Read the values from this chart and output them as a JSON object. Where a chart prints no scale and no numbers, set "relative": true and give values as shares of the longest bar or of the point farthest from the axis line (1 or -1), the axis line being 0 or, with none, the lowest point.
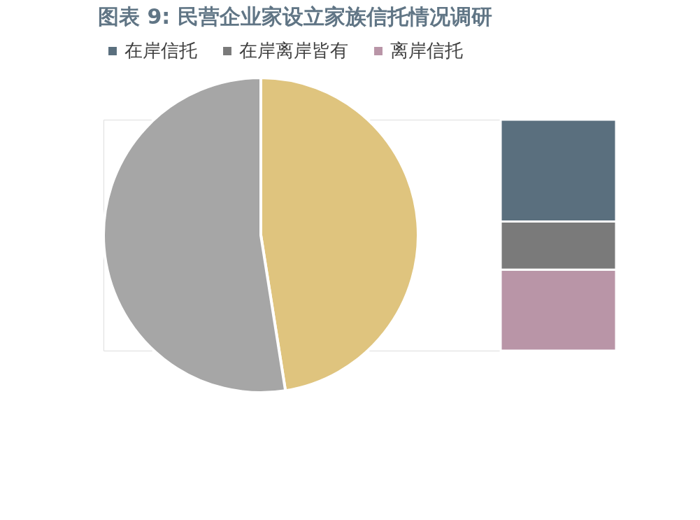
{
  "chart_data": [
    {
      "type": "pie",
      "title": "图表 9: 民营企业家设立家族信托情况调研",
      "categories": [
        null,
        null
      ],
      "values": [
        47.5,
        52.5
      ],
      "colors": [
        "#dfc47e",
        "#a6a6a6"
      ]
    },
    {
      "type": "bar",
      "stacked": true,
      "relative": true,
      "categories": [
        null
      ],
      "legend": "top",
      "series": [
        {
          "name": "离岸信托",
          "color": "#b995a7",
          "values": [
            0.351
          ]
        },
        {
          "name": "在岸离岸皆有",
          "color": "#7a7a7a",
          "values": [
            0.208
          ]
        },
        {
          "name": "在岸信托",
          "color": "#5a6f7e",
          "values": [
            0.441
          ]
        }
      ]
    }
  ]
}
